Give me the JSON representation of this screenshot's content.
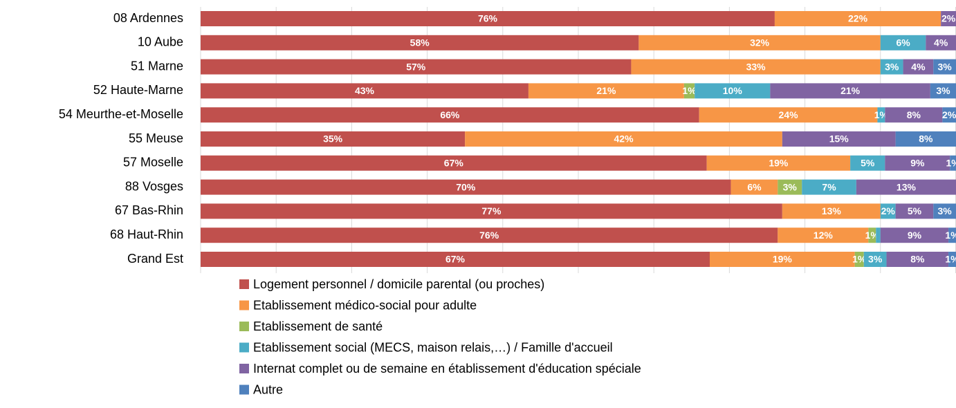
{
  "chart_data": {
    "type": "stacked_barh",
    "categories": [
      "08 Ardennes",
      "10 Aube",
      "51 Marne",
      "52 Haute-Marne",
      "54 Meurthe-et-Moselle",
      "55 Meuse",
      "57 Moselle",
      "88 Vosges",
      "67 Bas-Rhin",
      "68 Haut-Rhin",
      "Grand Est"
    ],
    "series": [
      {
        "name": "Logement personnel / domicile parental (ou proches)",
        "color": "#c0504d",
        "values": [
          76,
          58,
          57,
          43.4,
          66,
          35,
          67,
          70.2,
          77,
          76.4,
          67.4
        ],
        "value_labels": [
          "76%",
          "58%",
          "57%",
          "43%",
          "66%",
          "35%",
          "67%",
          "70%",
          "77%",
          "76%",
          "67%"
        ]
      },
      {
        "name": "Etablissement médico-social pour adulte",
        "color": "#f79646",
        "values": [
          22,
          32,
          33,
          20.6,
          23.6,
          42,
          19,
          6.2,
          13,
          12,
          19.2
        ],
        "value_labels": [
          "22%",
          "32%",
          "33%",
          "21%",
          "24%",
          "42%",
          "19%",
          "6%",
          "13%",
          "12%",
          "19%"
        ]
      },
      {
        "name": "Etablissement de santé",
        "color": "#9bbb59",
        "values": [
          null,
          null,
          null,
          1.4,
          null,
          null,
          null,
          3.2,
          null,
          1,
          1.2
        ],
        "value_labels": [
          null,
          null,
          null,
          "1%",
          null,
          null,
          null,
          "3%",
          null,
          "1%",
          "1%"
        ]
      },
      {
        "name": "Etablissement social (MECS, maison relais,…) / Famille d'accueil",
        "color": "#4bacc6",
        "values": [
          null,
          6,
          3,
          10,
          1,
          null,
          4.6,
          7.2,
          2,
          0.6,
          3
        ],
        "value_labels": [
          null,
          "6%",
          "3%",
          "10%",
          "1%",
          null,
          "5%",
          "7%",
          "2%",
          null,
          "3%"
        ]
      },
      {
        "name": "Internat complet ou de semaine en établissement d'éducation spéciale",
        "color": "#8064a2",
        "values": [
          2,
          4,
          4,
          21.2,
          7.6,
          15,
          8.6,
          13.2,
          5,
          9,
          8.2
        ],
        "value_labels": [
          "2%",
          "4%",
          "4%",
          "21%",
          "8%",
          "15%",
          "9%",
          "13%",
          "5%",
          "9%",
          "8%"
        ]
      },
      {
        "name": "Autre",
        "color": "#4f81bd",
        "values": [
          null,
          null,
          3,
          3.4,
          1.8,
          8,
          0.8,
          null,
          3,
          1,
          1
        ],
        "value_labels": [
          null,
          null,
          "3%",
          "3%",
          "2%",
          "8%",
          "1%",
          null,
          "3%",
          "1%",
          "1%"
        ]
      }
    ],
    "xlim": [
      0,
      100
    ],
    "xticks": [
      0,
      10,
      20,
      30,
      40,
      50,
      60,
      70,
      80,
      90,
      100
    ],
    "grid": true
  }
}
